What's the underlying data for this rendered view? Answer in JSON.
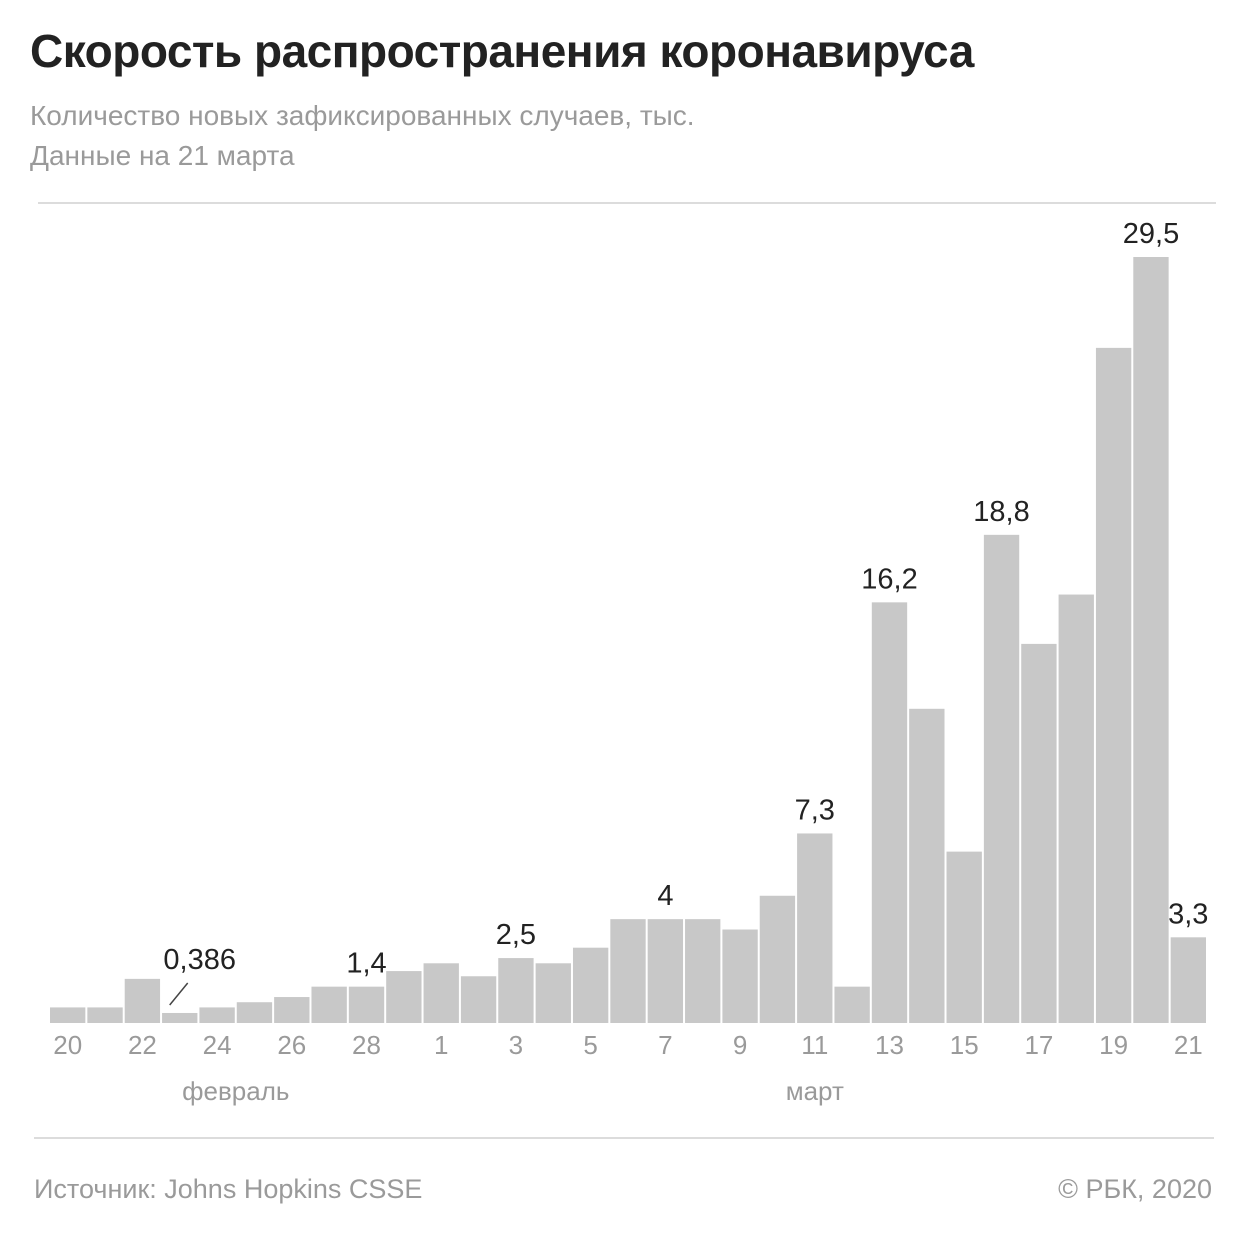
{
  "header": {
    "title": "Скорость распространения коронавируса",
    "subtitle_line1": "Количество новых зафиксированных случаев, тыс.",
    "subtitle_line2": "Данные на 21 марта"
  },
  "footer": {
    "source": "Источник: Johns Hopkins CSSE",
    "copyright": "© РБК, 2020"
  },
  "colors": {
    "bar": "#c8c8c8",
    "title": "#222222",
    "muted": "#9a9a9a",
    "rule": "#dcdcdc"
  },
  "chart_data": {
    "type": "bar",
    "title": "Скорость распространения коронавируса",
    "ylabel": "Количество новых зафиксированных случаев, тыс.",
    "ylim": [
      0,
      32
    ],
    "grid": false,
    "categories": [
      "20",
      "21",
      "22",
      "23",
      "24",
      "25",
      "26",
      "27",
      "28",
      "29",
      "1",
      "2",
      "3",
      "4",
      "5",
      "6",
      "7",
      "8",
      "9",
      "10",
      "11",
      "12",
      "13",
      "14",
      "15",
      "16",
      "17",
      "18",
      "19",
      "20",
      "21"
    ],
    "month_groups": [
      {
        "label": "февраль",
        "start": 0,
        "end": 9
      },
      {
        "label": "март",
        "start": 10,
        "end": 30
      }
    ],
    "x_tick_labels": [
      {
        "index": 0,
        "label": "20"
      },
      {
        "index": 2,
        "label": "22"
      },
      {
        "index": 4,
        "label": "24"
      },
      {
        "index": 6,
        "label": "26"
      },
      {
        "index": 8,
        "label": "28"
      },
      {
        "index": 10,
        "label": "1"
      },
      {
        "index": 12,
        "label": "3"
      },
      {
        "index": 14,
        "label": "5"
      },
      {
        "index": 16,
        "label": "7"
      },
      {
        "index": 18,
        "label": "9"
      },
      {
        "index": 20,
        "label": "11"
      },
      {
        "index": 22,
        "label": "13"
      },
      {
        "index": 24,
        "label": "15"
      },
      {
        "index": 26,
        "label": "17"
      },
      {
        "index": 28,
        "label": "19"
      },
      {
        "index": 30,
        "label": "21"
      }
    ],
    "values": [
      0.6,
      0.6,
      1.7,
      0.386,
      0.6,
      0.8,
      1.0,
      1.4,
      1.4,
      2.0,
      2.3,
      1.8,
      2.5,
      2.3,
      2.9,
      4.0,
      4.0,
      4.0,
      3.6,
      4.9,
      7.3,
      1.4,
      16.2,
      12.1,
      6.6,
      18.8,
      14.6,
      16.5,
      26.0,
      29.5,
      3.3
    ],
    "data_labels": [
      {
        "index": 3,
        "label": "0,386"
      },
      {
        "index": 8,
        "label": "1,4"
      },
      {
        "index": 12,
        "label": "2,5"
      },
      {
        "index": 16,
        "label": "4"
      },
      {
        "index": 20,
        "label": "7,3"
      },
      {
        "index": 22,
        "label": "16,2"
      },
      {
        "index": 25,
        "label": "18,8"
      },
      {
        "index": 29,
        "label": "29,5"
      },
      {
        "index": 30,
        "label": "3,3"
      }
    ]
  }
}
